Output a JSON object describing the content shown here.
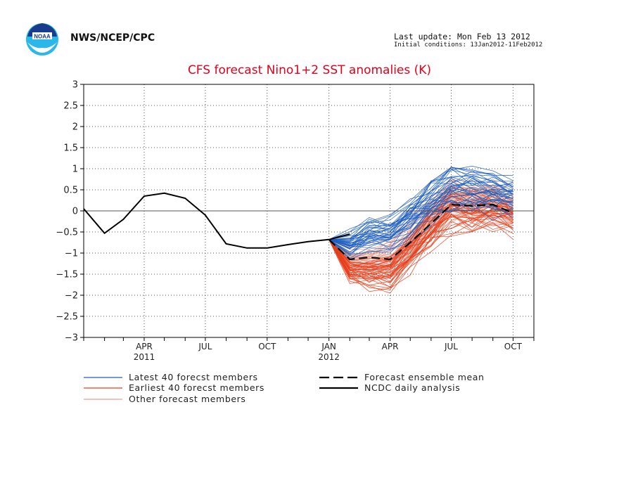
{
  "header": {
    "agency": "NWS/NCEP/CPC",
    "last_update": "Last update: Mon Feb 13 2012",
    "initial_conditions": "Initial conditions: 13Jan2012-11Feb2012",
    "logo_text": "NOAA"
  },
  "chart_data": {
    "type": "line",
    "title": "CFS forecast Nino1+2 SST anomalies (K)",
    "xlabel": "",
    "ylabel": "",
    "ylim": [
      -3,
      3
    ],
    "yticks": [
      3,
      2.5,
      2,
      1.5,
      1,
      0.5,
      0,
      -0.5,
      -1,
      -1.5,
      -2,
      -2.5,
      -3
    ],
    "yticklabels": [
      "3",
      "2.5",
      "2",
      "1.5",
      "1",
      "0.5",
      "0",
      "−0.5",
      "−1",
      "−1.5",
      "−2",
      "−2.5",
      "−3"
    ],
    "xrange": [
      "2011-01-15",
      "2012-11-15"
    ],
    "xticks": [
      {
        "month": "APR",
        "year": "2011",
        "date": "2011-04-15"
      },
      {
        "month": "JUL",
        "year": "",
        "date": "2011-07-15"
      },
      {
        "month": "OCT",
        "year": "",
        "date": "2011-10-15"
      },
      {
        "month": "JAN",
        "year": "2012",
        "date": "2012-01-15"
      },
      {
        "month": "APR",
        "year": "",
        "date": "2012-04-15"
      },
      {
        "month": "JUL",
        "year": "",
        "date": "2012-07-15"
      },
      {
        "month": "OCT",
        "year": "",
        "date": "2012-10-15"
      }
    ],
    "grid": true,
    "legend": [
      {
        "label": "Latest 40 forecst members",
        "color": "#1f5fbf",
        "style": "solid-thin"
      },
      {
        "label": "Earliest 40 forecst members",
        "color": "#e8401c",
        "style": "solid-thin"
      },
      {
        "label": "Other forecast members",
        "color": "#e8a090",
        "style": "solid-thin"
      },
      {
        "label": "Forecast ensemble mean",
        "color": "#000000",
        "style": "dashed"
      },
      {
        "label": "NCDC daily analysis",
        "color": "#000000",
        "style": "solid"
      }
    ],
    "forecast_start": "2012-01-15",
    "forecast_months": [
      "2012-01-15",
      "2012-02-15",
      "2012-03-15",
      "2012-04-15",
      "2012-05-15",
      "2012-06-15",
      "2012-07-15",
      "2012-08-15",
      "2012-09-15",
      "2012-10-15"
    ],
    "observed": {
      "name": "NCDC daily analysis",
      "x": [
        "2011-01-15",
        "2011-02-15",
        "2011-03-15",
        "2011-04-15",
        "2011-05-15",
        "2011-06-15",
        "2011-07-15",
        "2011-08-15",
        "2011-09-15",
        "2011-10-15",
        "2011-11-15",
        "2011-12-15",
        "2012-01-15",
        "2012-02-15"
      ],
      "y": [
        0.05,
        -0.53,
        -0.2,
        0.35,
        0.42,
        0.3,
        -0.1,
        -0.78,
        -0.88,
        -0.88,
        -0.8,
        -0.73,
        -0.68,
        -0.55
      ]
    },
    "ensemble_mean": {
      "name": "Forecast ensemble mean",
      "x": [
        "2012-01-15",
        "2012-02-15",
        "2012-03-15",
        "2012-04-15",
        "2012-05-15",
        "2012-06-15",
        "2012-07-15",
        "2012-08-15",
        "2012-09-15",
        "2012-10-15"
      ],
      "y": [
        -0.68,
        -1.15,
        -1.1,
        -1.15,
        -0.75,
        -0.3,
        0.15,
        0.12,
        0.15,
        -0.05
      ]
    },
    "member_groups": [
      {
        "name": "Latest 40 forecst members",
        "color": "#1f5fbf",
        "count": 40,
        "start": -0.68,
        "mean": [
          -0.68,
          -0.8,
          -0.55,
          -0.55,
          -0.2,
          0.2,
          0.5,
          0.45,
          0.4,
          0.35
        ],
        "spread": [
          0,
          0.35,
          0.4,
          0.45,
          0.5,
          0.55,
          0.55,
          0.6,
          0.6,
          0.5
        ]
      },
      {
        "name": "Earliest 40 forecst members",
        "color": "#e8401c",
        "count": 40,
        "start": -0.68,
        "mean": [
          -0.68,
          -1.45,
          -1.5,
          -1.45,
          -1.0,
          -0.45,
          0.0,
          -0.05,
          0.0,
          -0.15
        ],
        "spread": [
          0,
          0.3,
          0.4,
          0.45,
          0.5,
          0.55,
          0.55,
          0.55,
          0.55,
          0.5
        ]
      },
      {
        "name": "Other forecast members",
        "color": "#e8a090",
        "count": 40,
        "start": -0.68,
        "mean": [
          -0.68,
          -1.2,
          -1.2,
          -1.15,
          -0.7,
          -0.2,
          0.25,
          0.2,
          0.2,
          0.05
        ],
        "spread": [
          0,
          0.35,
          0.45,
          0.5,
          0.55,
          0.55,
          0.55,
          0.6,
          0.6,
          0.5
        ]
      }
    ]
  }
}
